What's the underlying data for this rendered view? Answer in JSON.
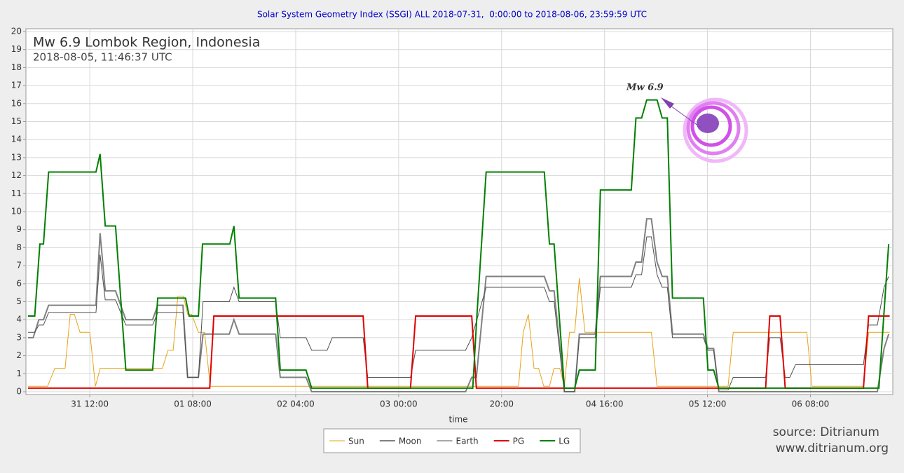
{
  "chart_data": {
    "type": "line",
    "title": "Solar System Geometry Index (SSGI) ALL 2018-07-31,  0:00:00 to 2018-08-06, 23:59:59 UTC",
    "heading": "Mw 6.9 Lombok Region, Indonesia",
    "subheading": "2018-08-05, 11:46:37 UTC",
    "annotation": "Mw 6.9",
    "x_label": "time",
    "source": "source: Ditrianum",
    "website": "www.ditrianum.org",
    "grid": true,
    "xlim": [
      0,
      168
    ],
    "xticks": [
      {
        "value": 12,
        "label": "31 12:00"
      },
      {
        "value": 32,
        "label": "01 08:00"
      },
      {
        "value": 52,
        "label": "02 04:00"
      },
      {
        "value": 72,
        "label": "03 00:00"
      },
      {
        "value": 92,
        "label": "20:00"
      },
      {
        "value": 112,
        "label": "04 16:00"
      },
      {
        "value": 132,
        "label": "05 12:00"
      },
      {
        "value": 152,
        "label": "06 08:00"
      }
    ],
    "ylim": [
      0,
      20
    ],
    "yticks": [
      0,
      1,
      2,
      3,
      4,
      5,
      6,
      7,
      8,
      9,
      10,
      11,
      12,
      13,
      14,
      15,
      16,
      17,
      18,
      19,
      20
    ],
    "series": [
      {
        "name": "Sun",
        "color": "#e8a317",
        "width": 1,
        "x": [
          0,
          3.8,
          5.2,
          7.2,
          8.2,
          9,
          10.1,
          12,
          13.1,
          14,
          26.1,
          27.2,
          28.2,
          29.1,
          30.2,
          31,
          31.8,
          33.1,
          34.3,
          35.4,
          95.3,
          96.2,
          97.2,
          98.3,
          99.2,
          100.2,
          101.3,
          102.2,
          103.3,
          104.2,
          105.2,
          106.2,
          107.1,
          108.2,
          121.1,
          122.2,
          136,
          137,
          151.3,
          152.3,
          162.3,
          163.3,
          167.4
        ],
        "values": [
          0.3,
          0.3,
          1.3,
          1.3,
          4.3,
          4.3,
          3.3,
          3.3,
          0.3,
          1.3,
          1.3,
          2.3,
          2.3,
          5.3,
          5.3,
          4.3,
          4.3,
          3.3,
          3.3,
          0.3,
          0.3,
          3.3,
          4.3,
          1.3,
          1.3,
          0.3,
          0.3,
          1.3,
          1.3,
          0.3,
          3.3,
          3.3,
          6.3,
          3.3,
          3.3,
          0.3,
          0.3,
          3.3,
          3.3,
          0.3,
          0.3,
          3.3,
          3.3
        ]
      },
      {
        "name": "Moon",
        "color": "#808080",
        "width": 2,
        "x": [
          0,
          1,
          2.1,
          3,
          4,
          13.2,
          14,
          15,
          17,
          19,
          24.2,
          25.2,
          30.1,
          31,
          33.1,
          34,
          39.1,
          40,
          41,
          48.1,
          49,
          54,
          55.1,
          85,
          86.2,
          87.1,
          89,
          100.3,
          101.3,
          102.2,
          104.2,
          106.2,
          107.1,
          110.2,
          111.2,
          117.2,
          118.1,
          119.2,
          120.2,
          121.1,
          122.2,
          123.2,
          124.2,
          125.2,
          131.2,
          132.1,
          133.2,
          134.2,
          165,
          166.3,
          167.2
        ],
        "values": [
          3,
          3,
          4,
          4,
          4.8,
          4.8,
          8.8,
          5.6,
          5.6,
          4,
          4,
          4.8,
          4.8,
          0.8,
          0.8,
          3.2,
          3.2,
          4,
          3.2,
          3.2,
          0.8,
          0.8,
          0,
          0,
          0.8,
          0.8,
          6.4,
          6.4,
          5.6,
          5.6,
          0,
          0,
          3.2,
          3.2,
          6.4,
          6.4,
          7.2,
          7.2,
          9.6,
          9.6,
          7.2,
          6.4,
          6.4,
          3.2,
          3.2,
          2.4,
          2.4,
          0,
          0,
          2.4,
          3.2
        ]
      },
      {
        "name": "Earth",
        "color": "#505050",
        "width": 1,
        "x": [
          0,
          1.3,
          2.1,
          3,
          4,
          13.2,
          14,
          15,
          17,
          19,
          24.2,
          25.2,
          30.1,
          31,
          33.1,
          34,
          39.1,
          40,
          41,
          48.1,
          49,
          54,
          55.1,
          58.1,
          59.1,
          65.1,
          66,
          74.3,
          75.3,
          85,
          86.2,
          89,
          100.3,
          101.3,
          102.2,
          104.2,
          106.2,
          107.1,
          110.2,
          111.2,
          117.2,
          118.1,
          119.2,
          120.2,
          121.1,
          122.2,
          123.2,
          124.2,
          125.2,
          131.2,
          132.1,
          133.2,
          134.2,
          136,
          137,
          143.3,
          144.1,
          146.1,
          147.1,
          148,
          149.1,
          162.3,
          163.3,
          165,
          166.3,
          167.2
        ],
        "values": [
          3.3,
          3.3,
          3.7,
          3.7,
          4.4,
          4.4,
          7.6,
          5.1,
          5.1,
          3.7,
          3.7,
          4.4,
          4.4,
          0.8,
          0.8,
          5,
          5,
          5.8,
          5,
          5,
          3,
          3,
          2.3,
          2.3,
          3,
          3,
          0.8,
          0.8,
          2.3,
          2.3,
          3,
          5.8,
          5.8,
          5,
          5,
          0,
          0,
          3,
          3,
          5.8,
          5.8,
          6.5,
          6.5,
          8.6,
          8.6,
          6.5,
          5.8,
          5.8,
          3,
          3,
          2.3,
          2.3,
          0.1,
          0.1,
          0.8,
          0.8,
          3,
          3,
          0.8,
          0.8,
          1.5,
          1.5,
          3.7,
          3.7,
          5.8,
          6.4
        ]
      },
      {
        "name": "PG",
        "color": "#e00000",
        "width": 2,
        "x": [
          0,
          35.3,
          36.1,
          65.1,
          66,
          74.3,
          75.3,
          86.2,
          87.1,
          143.3,
          144.1,
          146.1,
          147.1,
          162.3,
          163.3,
          167.4
        ],
        "values": [
          0.2,
          0.2,
          4.2,
          4.2,
          0.2,
          0.2,
          4.2,
          4.2,
          0.2,
          0.2,
          4.2,
          4.2,
          0.2,
          0.2,
          4.2,
          4.2
        ]
      },
      {
        "name": "LG",
        "color": "#008000",
        "width": 2,
        "x": [
          0,
          1.3,
          2.3,
          3,
          4,
          13.2,
          14,
          15,
          17,
          19,
          24.2,
          25.2,
          30.6,
          31.3,
          33.1,
          33.9,
          39.2,
          40,
          41,
          48.1,
          49,
          54,
          55.1,
          86.4,
          87.2,
          89,
          100.3,
          101.3,
          102.2,
          104.2,
          106.2,
          107.1,
          110.2,
          111.2,
          117.2,
          118.1,
          119.2,
          120.2,
          122.2,
          123.2,
          124.2,
          125.2,
          131.2,
          132.1,
          133.2,
          134.2,
          165.3,
          167.2
        ],
        "values": [
          4.2,
          4.2,
          8.2,
          8.2,
          12.2,
          12.2,
          13.2,
          9.2,
          9.2,
          1.2,
          1.2,
          5.2,
          5.2,
          4.2,
          4.2,
          8.2,
          8.2,
          9.2,
          5.2,
          5.2,
          1.2,
          1.2,
          0.2,
          0.2,
          4.2,
          12.2,
          12.2,
          8.2,
          8.2,
          0.2,
          0.2,
          1.2,
          1.2,
          11.2,
          11.2,
          15.2,
          15.2,
          16.2,
          16.2,
          15.2,
          15.2,
          5.2,
          5.2,
          1.2,
          1.2,
          0.2,
          0.2,
          8.2
        ]
      }
    ]
  }
}
